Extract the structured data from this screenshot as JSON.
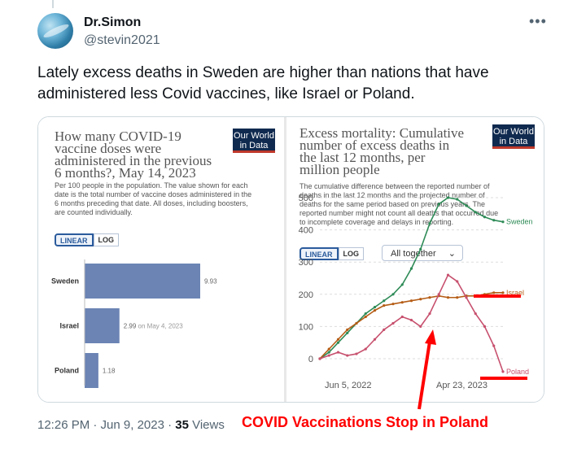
{
  "author": {
    "name": "Dr.Simon",
    "handle": "@stevin2021"
  },
  "tweet_text": "Lately excess deaths in Sweden are higher than nations that have administered less Covid vaccines, like Israel or Poland.",
  "more_icon": "more-icon",
  "left_chart": {
    "title_lines": [
      "How many COVID-19",
      "vaccine doses were",
      "administered in the previous",
      "6 months?, May 14, 2023"
    ],
    "subtitle_lines": [
      "Per 100 people in the population. The value shown for each",
      "date is the total number of vaccine doses administered in the",
      "6 months preceding that date. All doses, including boosters,",
      "are counted individually."
    ],
    "logo_lines": [
      "Our World",
      "in Data"
    ],
    "toggle": [
      "LINEAR",
      "LOG"
    ],
    "bar_note": "on May 4, 2023"
  },
  "right_chart": {
    "title_lines": [
      "Excess mortality: Cumulative",
      "number of excess deaths in",
      "the last 12 months, per",
      "million people"
    ],
    "subtitle_lines": [
      "The cumulative difference between the reported number of",
      "deaths in the last 12 months and the projected number of",
      "deaths for the same period based on previous years. The",
      "reported number might not count all deaths that occurred due",
      "to incomplete coverage and delays in reporting."
    ],
    "logo_lines": [
      "Our World",
      "in Data"
    ],
    "toggle": [
      "LINEAR",
      "LOG"
    ],
    "select_label": "All together"
  },
  "chart_data": [
    {
      "type": "bar",
      "title": "How many COVID-19 vaccine doses were administered in the previous 6 months?, May 14, 2023",
      "categories": [
        "Sweden",
        "Israel",
        "Poland"
      ],
      "values": [
        9.93,
        2.99,
        1.18
      ],
      "value_labels": [
        "9.93",
        "2.99",
        "1.18"
      ],
      "colors": [
        "#6b84b4"
      ]
    },
    {
      "type": "line",
      "title": "Excess mortality: Cumulative number of excess deaths in the last 12 months, per million people",
      "x_tick_labels": [
        "Jun 5, 2022",
        "Apr 23, 2023"
      ],
      "y_ticks": [
        0,
        100,
        200,
        300,
        400,
        500
      ],
      "ylim": [
        0,
        500
      ],
      "series": [
        {
          "name": "Sweden",
          "color": "#2e8b57",
          "values": [
            0,
            20,
            50,
            80,
            110,
            140,
            160,
            180,
            200,
            230,
            280,
            340,
            420,
            480,
            500,
            495,
            475,
            455,
            440,
            430,
            425
          ]
        },
        {
          "name": "Israel",
          "color": "#b55d16",
          "values": [
            0,
            30,
            60,
            90,
            110,
            130,
            150,
            165,
            170,
            175,
            180,
            185,
            190,
            195,
            190,
            190,
            195,
            195,
            200,
            205,
            205
          ]
        },
        {
          "name": "Poland",
          "color": "#c7506e",
          "values": [
            0,
            10,
            20,
            10,
            15,
            30,
            60,
            90,
            110,
            130,
            120,
            100,
            140,
            200,
            260,
            240,
            190,
            140,
            100,
            40,
            -40
          ]
        }
      ]
    }
  ],
  "footer": {
    "time": "12:26 PM · Jun 9, 2023 · ",
    "views_count": "35",
    "views_label": " Views"
  },
  "annotation": "COVID Vaccinations Stop in Poland",
  "annotation_color": "#ff0000"
}
